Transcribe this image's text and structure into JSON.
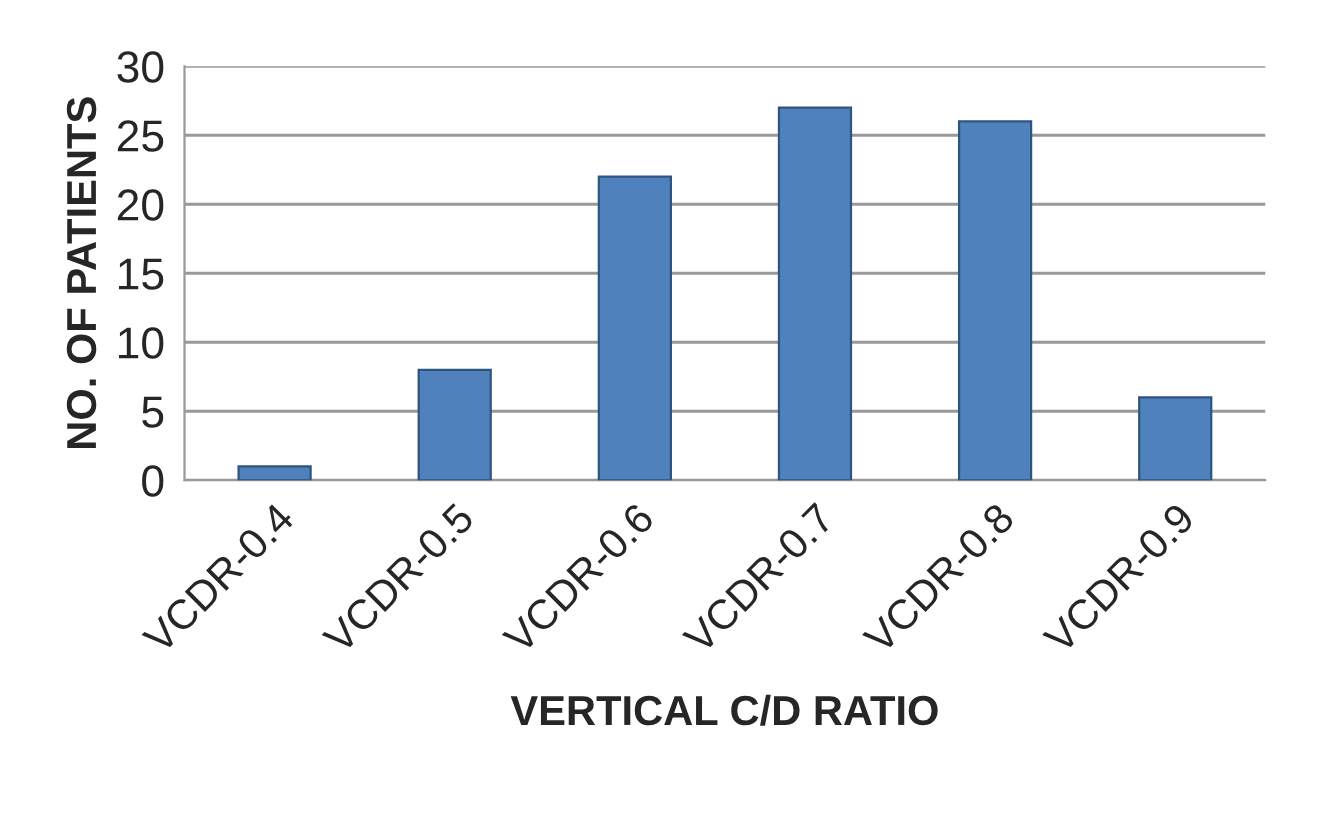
{
  "chart_data": {
    "type": "bar",
    "categories": [
      "VCDR-0.4",
      "VCDR-0.5",
      "VCDR-0.6",
      "VCDR-0.7",
      "VCDR-0.8",
      "VCDR-0.9"
    ],
    "values": [
      1,
      8,
      22,
      27,
      26,
      6
    ],
    "color": "#4f81bd",
    "xlabel": "VERTICAL C/D RATIO",
    "ylabel": "NO. OF PATIENTS",
    "ylim": [
      0,
      30
    ],
    "yticks": [
      0,
      5,
      10,
      15,
      20,
      25,
      30
    ],
    "grid": "y",
    "legend": false
  }
}
